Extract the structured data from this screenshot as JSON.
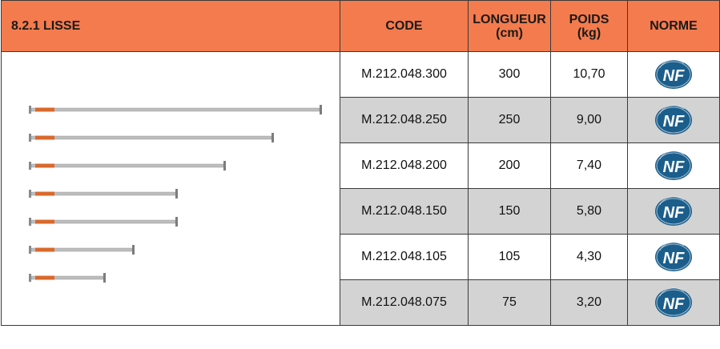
{
  "header": {
    "title": "8.2.1 LISSE",
    "code": "CODE",
    "longueur": [
      "LONGUEUR",
      "(cm)"
    ],
    "poids": [
      "POIDS",
      "(kg)"
    ],
    "norme": "NORME"
  },
  "rows": [
    {
      "code": "M.212.048.300",
      "longueur": "300",
      "poids": "10,70",
      "norme": "NF",
      "shaded": false
    },
    {
      "code": "M.212.048.250",
      "longueur": "250",
      "poids": "9,00",
      "norme": "NF",
      "shaded": true
    },
    {
      "code": "M.212.048.200",
      "longueur": "200",
      "poids": "7,40",
      "norme": "NF",
      "shaded": false
    },
    {
      "code": "M.212.048.150",
      "longueur": "150",
      "poids": "5,80",
      "norme": "NF",
      "shaded": true
    },
    {
      "code": "M.212.048.105",
      "longueur": "105",
      "poids": "4,30",
      "norme": "NF",
      "shaded": false
    },
    {
      "code": "M.212.048.075",
      "longueur": "75",
      "poids": "3,20",
      "norme": "NF",
      "shaded": true
    }
  ],
  "colors": {
    "header": "#f47b4d",
    "shade": "#d3d3d3",
    "nf_blue": "#1b5e8c"
  },
  "image": {
    "name": "ledger-bars-illustration",
    "ledger_lengths_cm": [
      300,
      250,
      200,
      150,
      150,
      105,
      75
    ]
  }
}
